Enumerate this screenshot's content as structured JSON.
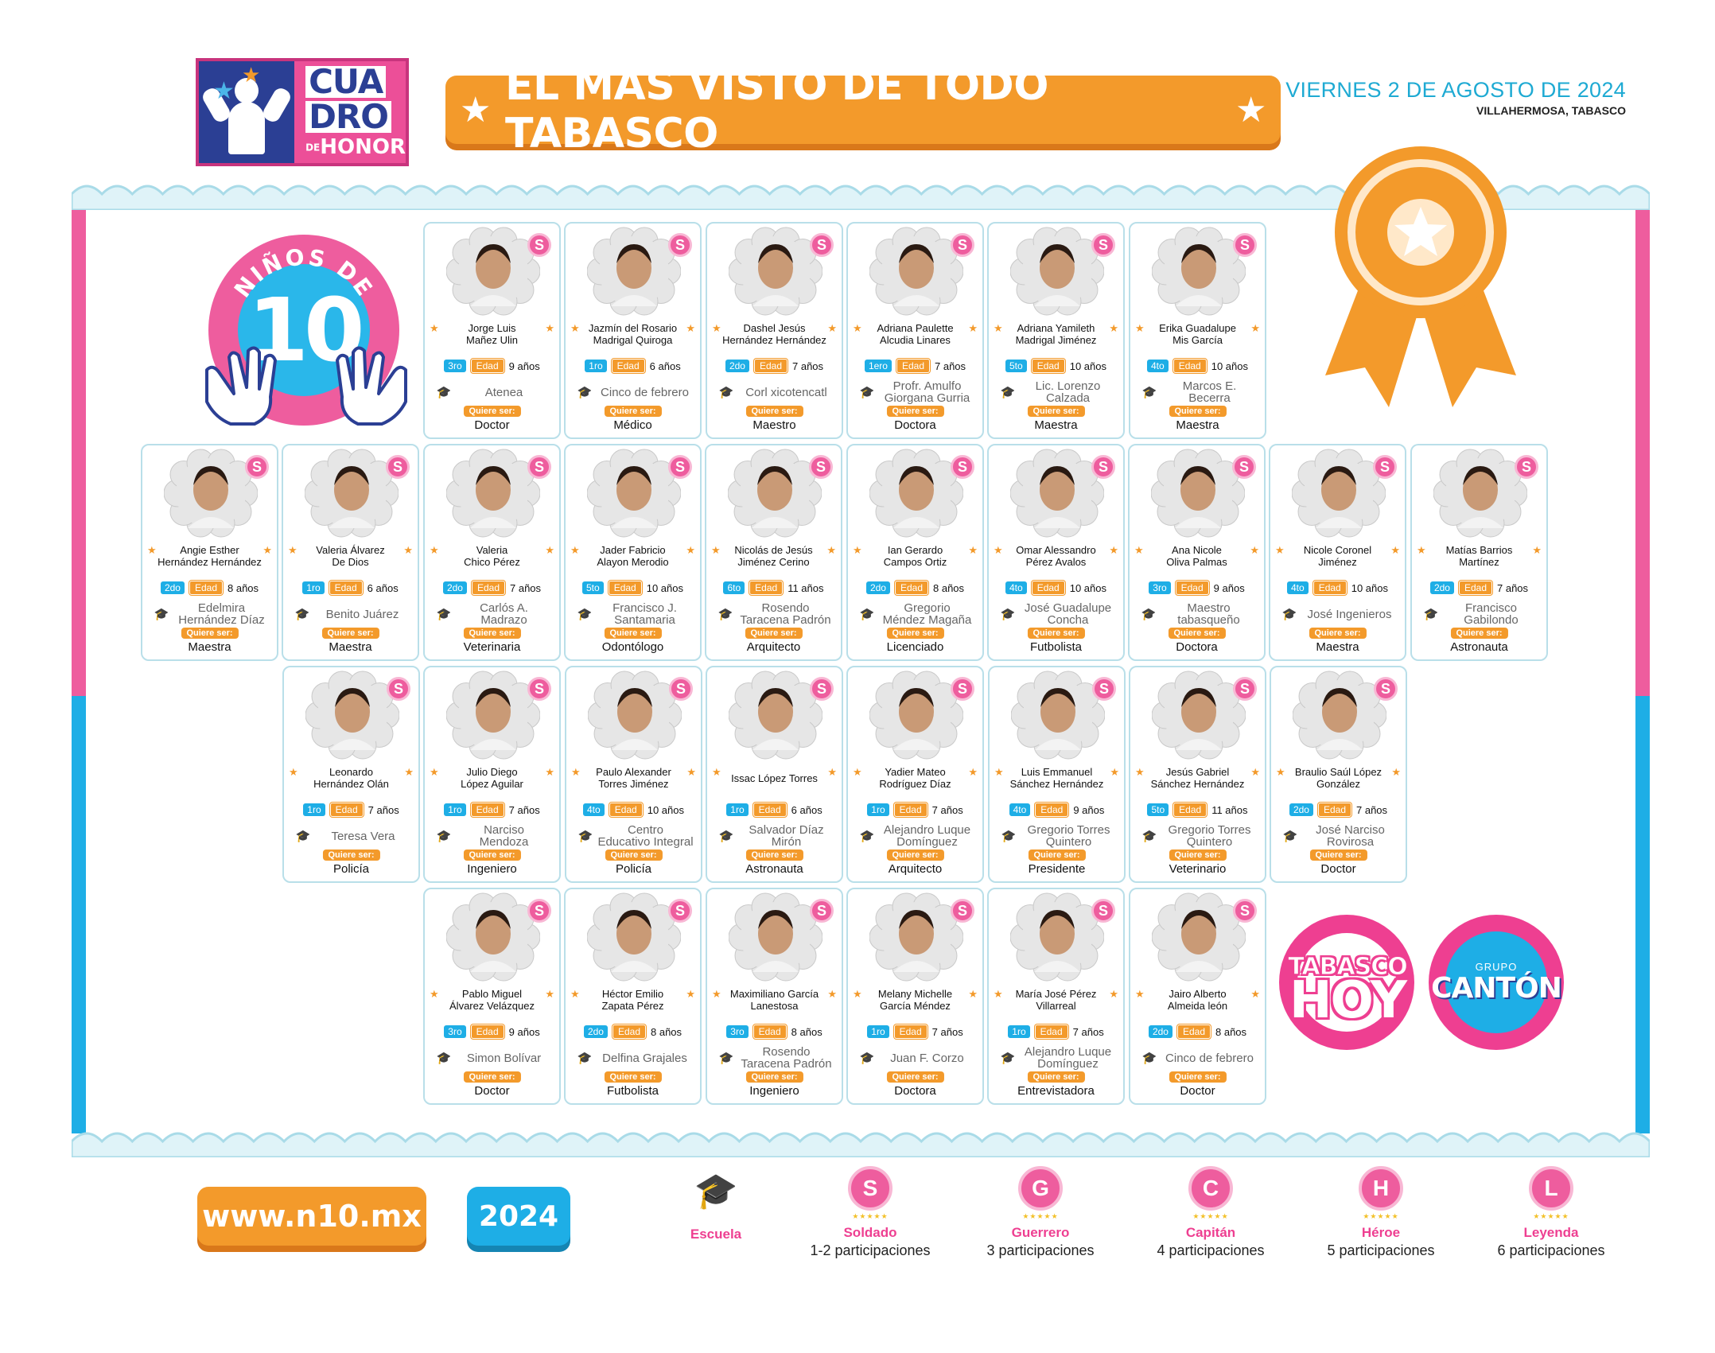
{
  "header": {
    "logo_line1": "CUA",
    "logo_line2": "DRO",
    "logo_de": "DE",
    "logo_line3": "HONOR",
    "title": "EL MÁS VISTO DE TODO TABASCO",
    "date": "VIERNES 2 DE AGOSTO DE 2024",
    "place": "VILLAHERMOSA, TABASCO"
  },
  "badge": {
    "arc_text": "NIÑOS DE",
    "number": "10"
  },
  "labels": {
    "edad": "Edad",
    "quiere_ser": "Quiere ser:",
    "rank_letter": "S"
  },
  "colors": {
    "pink": "#ee5d9e",
    "blue": "#1eaee6",
    "orange": "#f39a2b",
    "green": "#8fbf37"
  },
  "students": [
    {
      "name": "Jorge Luis\nMañez Ulin",
      "grade": "3ro",
      "age": "9 años",
      "school": "Atenea",
      "wants": "Doctor"
    },
    {
      "name": "Jazmín del Rosario\nMadrigal Quiroga",
      "grade": "1ro",
      "age": "6 años",
      "school": "Cinco de febrero",
      "wants": "Médico"
    },
    {
      "name": "Dashel Jesús\nHernández Hernández",
      "grade": "2do",
      "age": "7 años",
      "school": "Corl xicotencatl",
      "wants": "Maestro"
    },
    {
      "name": "Adriana Paulette\nAlcudia Linares",
      "grade": "1ero",
      "age": "7 años",
      "school": "Profr. Amulfo\nGiorgana Gurria",
      "wants": "Doctora"
    },
    {
      "name": "Adriana Yamileth\nMadrigal Jiménez",
      "grade": "5to",
      "age": "10 años",
      "school": "Lic. Lorenzo\nCalzada",
      "wants": "Maestra"
    },
    {
      "name": "Erika Guadalupe\nMis García",
      "grade": "4to",
      "age": "10 años",
      "school": "Marcos E.\nBecerra",
      "wants": "Maestra"
    },
    {
      "name": "Angie Esther\nHernández Hernández",
      "grade": "2do",
      "age": "8 años",
      "school": "Edelmira\nHernández Díaz",
      "wants": "Maestra"
    },
    {
      "name": "Valeria Álvarez\nDe Dios",
      "grade": "1ro",
      "age": "6 años",
      "school": "Benito Juárez",
      "wants": "Maestra"
    },
    {
      "name": "Valeria\nChico Pérez",
      "grade": "2do",
      "age": "7 años",
      "school": "Carlós A.\nMadrazo",
      "wants": "Veterinaria"
    },
    {
      "name": "Jader Fabricio\nAlayon Merodio",
      "grade": "5to",
      "age": "10 años",
      "school": "Francisco J.\nSantamaria",
      "wants": "Odontólogo"
    },
    {
      "name": "Nicolás de Jesús\nJiménez Cerino",
      "grade": "6to",
      "age": "11 años",
      "school": "Rosendo\nTaracena Padrón",
      "wants": "Arquitecto"
    },
    {
      "name": "Ian Gerardo\nCampos Ortiz",
      "grade": "2do",
      "age": "8 años",
      "school": "Gregorio\nMéndez Magaña",
      "wants": "Licenciado"
    },
    {
      "name": "Omar Alessandro\nPérez Avalos",
      "grade": "4to",
      "age": "10 años",
      "school": "José Guadalupe\nConcha",
      "wants": "Futbolista"
    },
    {
      "name": "Ana Nicole\nOliva Palmas",
      "grade": "3ro",
      "age": "9 años",
      "school": "Maestro\ntabasqueño",
      "wants": "Doctora"
    },
    {
      "name": "Nicole Coronel\nJiménez",
      "grade": "4to",
      "age": "10 años",
      "school": "José Ingenieros",
      "wants": "Maestra"
    },
    {
      "name": "Matías Barrios\nMartínez",
      "grade": "2do",
      "age": "7 años",
      "school": "Francisco\nGabilondo",
      "wants": "Astronauta"
    },
    {
      "name": "Leonardo\nHernández Olán",
      "grade": "1ro",
      "age": "7 años",
      "school": "Teresa Vera",
      "wants": "Policía"
    },
    {
      "name": "Julio Diego\nLópez Aguilar",
      "grade": "1ro",
      "age": "7 años",
      "school": "Narciso\nMendoza",
      "wants": "Ingeniero"
    },
    {
      "name": "Paulo Alexander\nTorres Jiménez",
      "grade": "4to",
      "age": "10 años",
      "school": "Centro\nEducativo Integral",
      "wants": "Policía"
    },
    {
      "name": "Issac López Torres",
      "grade": "1ro",
      "age": "6 años",
      "school": "Salvador Díaz\nMirón",
      "wants": "Astronauta"
    },
    {
      "name": "Yadier Mateo\nRodríguez Díaz",
      "grade": "1ro",
      "age": "7 años",
      "school": "Alejandro Luque\nDomínguez",
      "wants": "Arquitecto"
    },
    {
      "name": "Luis Emmanuel\nSánchez Hernández",
      "grade": "4to",
      "age": "9 años",
      "school": "Gregorio Torres\nQuintero",
      "wants": "Presidente"
    },
    {
      "name": "Jesús Gabriel\nSánchez Hernández",
      "grade": "5to",
      "age": "11 años",
      "school": "Gregorio Torres\nQuintero",
      "wants": "Veterinario"
    },
    {
      "name": "Braulio Saúl López\nGonzález",
      "grade": "2do",
      "age": "7 años",
      "school": "José Narciso\nRovirosa",
      "wants": "Doctor"
    },
    {
      "name": "Pablo Miguel\nÁlvarez Velázquez",
      "grade": "3ro",
      "age": "9 años",
      "school": "Simon Bolívar",
      "wants": "Doctor"
    },
    {
      "name": "Héctor Emilio\nZapata Pérez",
      "grade": "2do",
      "age": "8 años",
      "school": "Delfina Grajales",
      "wants": "Futbolista"
    },
    {
      "name": "Maximiliano García\nLanestosa",
      "grade": "3ro",
      "age": "8 años",
      "school": "Rosendo\nTaracena Padrón",
      "wants": "Ingeniero"
    },
    {
      "name": "Melany Michelle\nGarcía Méndez",
      "grade": "1ro",
      "age": "7 años",
      "school": "Juan F. Corzo",
      "wants": "Doctora"
    },
    {
      "name": "María José Pérez\nVillarreal",
      "grade": "1ro",
      "age": "7 años",
      "school": "Alejandro Luque\nDomínguez",
      "wants": "Entrevistadora"
    },
    {
      "name": "Jairo Alberto\nAlmeida león",
      "grade": "2do",
      "age": "8 años",
      "school": "Cinco de febrero",
      "wants": "Doctor"
    }
  ],
  "brands": {
    "hoy_1": "TABASCO",
    "hoy_2": "HOY",
    "canton_1": "GRUPO",
    "canton_2": "CANTÓN"
  },
  "footer": {
    "url": "www.n10.mx",
    "year": "2024",
    "school_label": "Escuela",
    "legend": [
      {
        "letter": "S",
        "label": "Soldado",
        "desc": "1-2 participaciones"
      },
      {
        "letter": "G",
        "label": "Guerrero",
        "desc": "3 participaciones"
      },
      {
        "letter": "C",
        "label": "Capitán",
        "desc": "4 participaciones"
      },
      {
        "letter": "H",
        "label": "Héroe",
        "desc": "5 participaciones"
      },
      {
        "letter": "L",
        "label": "Leyenda",
        "desc": "6 participaciones"
      }
    ]
  }
}
